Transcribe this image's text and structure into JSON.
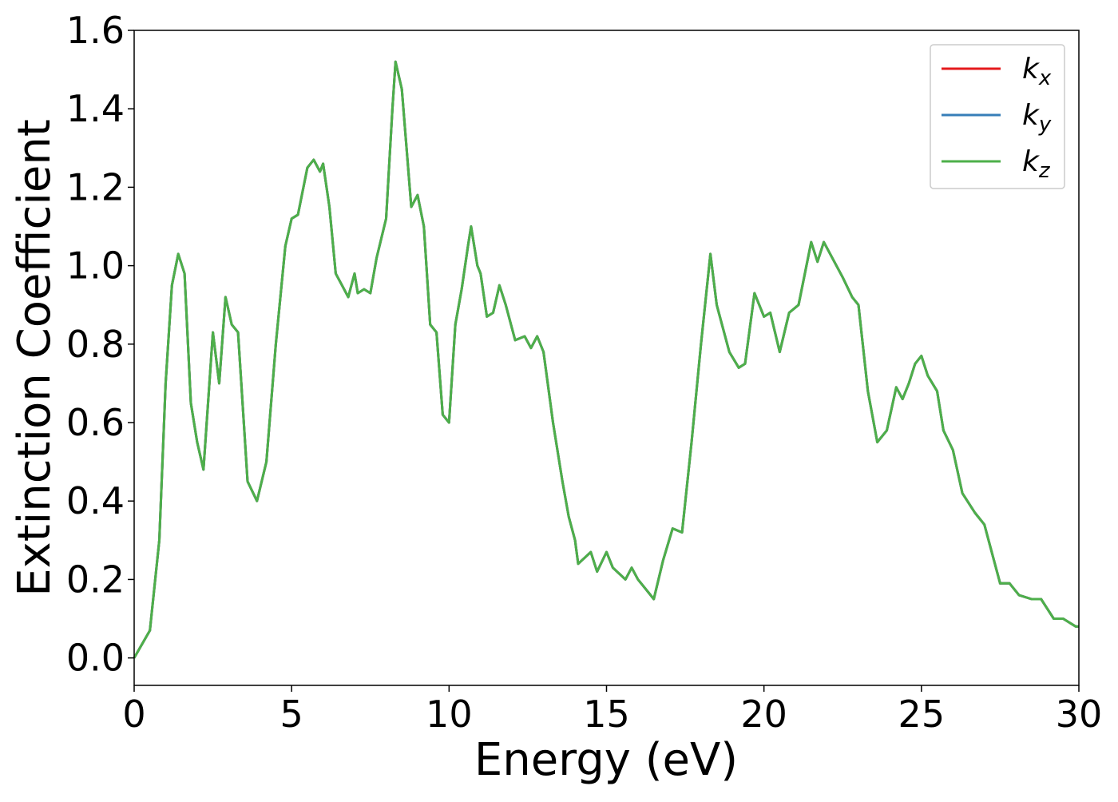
{
  "chart_data": {
    "type": "line",
    "x_label": "Energy (eV)",
    "y_label": "Extinction Coefficient",
    "xlim": [
      0,
      30
    ],
    "ylim": [
      -0.07,
      1.6
    ],
    "xticks": [
      0,
      5,
      10,
      15,
      20,
      25,
      30
    ],
    "yticks": [
      {
        "value": 0,
        "label": "0.0"
      },
      0.2,
      0.4,
      0.6,
      0.8,
      {
        "value": 1,
        "label": "1.0"
      },
      1.2,
      1.4,
      1.6
    ],
    "legend": "upper right",
    "x": [
      0,
      0.5,
      0.8,
      1.0,
      1.2,
      1.4,
      1.6,
      1.8,
      2.0,
      2.2,
      2.5,
      2.7,
      2.9,
      3.1,
      3.3,
      3.6,
      3.9,
      4.2,
      4.5,
      4.8,
      5.0,
      5.2,
      5.5,
      5.7,
      5.9,
      6.0,
      6.2,
      6.4,
      6.6,
      6.8,
      7.0,
      7.1,
      7.3,
      7.5,
      7.7,
      8.0,
      8.2,
      8.3,
      8.5,
      8.8,
      9.0,
      9.2,
      9.4,
      9.6,
      9.8,
      10.0,
      10.2,
      10.4,
      10.6,
      10.7,
      10.9,
      11.0,
      11.2,
      11.4,
      11.6,
      11.8,
      12.1,
      12.4,
      12.6,
      12.8,
      13.0,
      13.3,
      13.6,
      13.8,
      14.0,
      14.1,
      14.5,
      14.7,
      15.0,
      15.2,
      15.6,
      15.8,
      16.0,
      16.2,
      16.5,
      16.8,
      17.1,
      17.4,
      17.7,
      18.0,
      18.3,
      18.5,
      18.9,
      19.2,
      19.4,
      19.7,
      20.0,
      20.2,
      20.5,
      20.8,
      21.1,
      21.5,
      21.7,
      21.9,
      22.3,
      22.5,
      22.8,
      23.0,
      23.3,
      23.6,
      23.9,
      24.2,
      24.4,
      24.6,
      24.8,
      25.0,
      25.2,
      25.5,
      25.7,
      26.0,
      26.3,
      26.7,
      27.0,
      27.3,
      27.5,
      27.8,
      28.1,
      28.5,
      28.8,
      29.2,
      29.5,
      29.9,
      30
    ],
    "series": [
      {
        "name": "kx",
        "color": "#e41a1c",
        "values": [
          0,
          0.07,
          0.3,
          0.7,
          0.95,
          1.03,
          0.98,
          0.65,
          0.55,
          0.48,
          0.83,
          0.7,
          0.92,
          0.85,
          0.83,
          0.45,
          0.4,
          0.5,
          0.8,
          1.05,
          1.12,
          1.13,
          1.25,
          1.27,
          1.24,
          1.26,
          1.15,
          0.98,
          0.95,
          0.92,
          0.98,
          0.93,
          0.94,
          0.93,
          1.02,
          1.12,
          1.4,
          1.52,
          1.45,
          1.15,
          1.18,
          1.1,
          0.85,
          0.83,
          0.62,
          0.6,
          0.85,
          0.94,
          1.05,
          1.1,
          1.0,
          0.98,
          0.87,
          0.88,
          0.95,
          0.9,
          0.81,
          0.82,
          0.79,
          0.82,
          0.78,
          0.6,
          0.45,
          0.36,
          0.3,
          0.24,
          0.27,
          0.22,
          0.27,
          0.23,
          0.2,
          0.23,
          0.2,
          0.18,
          0.15,
          0.25,
          0.33,
          0.32,
          0.55,
          0.8,
          1.03,
          0.9,
          0.78,
          0.74,
          0.75,
          0.93,
          0.87,
          0.88,
          0.78,
          0.88,
          0.9,
          1.06,
          1.01,
          1.06,
          1.0,
          0.97,
          0.92,
          0.9,
          0.68,
          0.55,
          0.58,
          0.69,
          0.66,
          0.7,
          0.75,
          0.77,
          0.72,
          0.68,
          0.58,
          0.53,
          0.42,
          0.37,
          0.34,
          0.25,
          0.19,
          0.19,
          0.16,
          0.15,
          0.15,
          0.1,
          0.1,
          0.08,
          0.08
        ]
      },
      {
        "name": "ky",
        "color": "#377eb8",
        "values": [
          0,
          0.07,
          0.3,
          0.7,
          0.95,
          1.03,
          0.98,
          0.65,
          0.55,
          0.48,
          0.83,
          0.7,
          0.92,
          0.85,
          0.83,
          0.45,
          0.4,
          0.5,
          0.8,
          1.05,
          1.12,
          1.13,
          1.25,
          1.27,
          1.24,
          1.26,
          1.15,
          0.98,
          0.95,
          0.92,
          0.98,
          0.93,
          0.94,
          0.93,
          1.02,
          1.12,
          1.4,
          1.52,
          1.45,
          1.15,
          1.18,
          1.1,
          0.85,
          0.83,
          0.62,
          0.6,
          0.85,
          0.94,
          1.05,
          1.1,
          1.0,
          0.98,
          0.87,
          0.88,
          0.95,
          0.9,
          0.81,
          0.82,
          0.79,
          0.82,
          0.78,
          0.6,
          0.45,
          0.36,
          0.3,
          0.24,
          0.27,
          0.22,
          0.27,
          0.23,
          0.2,
          0.23,
          0.2,
          0.18,
          0.15,
          0.25,
          0.33,
          0.32,
          0.55,
          0.8,
          1.03,
          0.9,
          0.78,
          0.74,
          0.75,
          0.93,
          0.87,
          0.88,
          0.78,
          0.88,
          0.9,
          1.06,
          1.01,
          1.06,
          1.0,
          0.97,
          0.92,
          0.9,
          0.68,
          0.55,
          0.58,
          0.69,
          0.66,
          0.7,
          0.75,
          0.77,
          0.72,
          0.68,
          0.58,
          0.53,
          0.42,
          0.37,
          0.34,
          0.25,
          0.19,
          0.19,
          0.16,
          0.15,
          0.15,
          0.1,
          0.1,
          0.08,
          0.08
        ]
      },
      {
        "name": "kz",
        "color": "#4daf4a",
        "values": [
          0,
          0.07,
          0.3,
          0.7,
          0.95,
          1.03,
          0.98,
          0.65,
          0.55,
          0.48,
          0.83,
          0.7,
          0.92,
          0.85,
          0.83,
          0.45,
          0.4,
          0.5,
          0.8,
          1.05,
          1.12,
          1.13,
          1.25,
          1.27,
          1.24,
          1.26,
          1.15,
          0.98,
          0.95,
          0.92,
          0.98,
          0.93,
          0.94,
          0.93,
          1.02,
          1.12,
          1.4,
          1.52,
          1.45,
          1.15,
          1.18,
          1.1,
          0.85,
          0.83,
          0.62,
          0.6,
          0.85,
          0.94,
          1.05,
          1.1,
          1.0,
          0.98,
          0.87,
          0.88,
          0.95,
          0.9,
          0.81,
          0.82,
          0.79,
          0.82,
          0.78,
          0.6,
          0.45,
          0.36,
          0.3,
          0.24,
          0.27,
          0.22,
          0.27,
          0.23,
          0.2,
          0.23,
          0.2,
          0.18,
          0.15,
          0.25,
          0.33,
          0.32,
          0.55,
          0.8,
          1.03,
          0.9,
          0.78,
          0.74,
          0.75,
          0.93,
          0.87,
          0.88,
          0.78,
          0.88,
          0.9,
          1.06,
          1.01,
          1.06,
          1.0,
          0.97,
          0.92,
          0.9,
          0.68,
          0.55,
          0.58,
          0.69,
          0.66,
          0.7,
          0.75,
          0.77,
          0.72,
          0.68,
          0.58,
          0.53,
          0.42,
          0.37,
          0.34,
          0.25,
          0.19,
          0.19,
          0.16,
          0.15,
          0.15,
          0.1,
          0.1,
          0.08,
          0.08
        ]
      }
    ]
  }
}
